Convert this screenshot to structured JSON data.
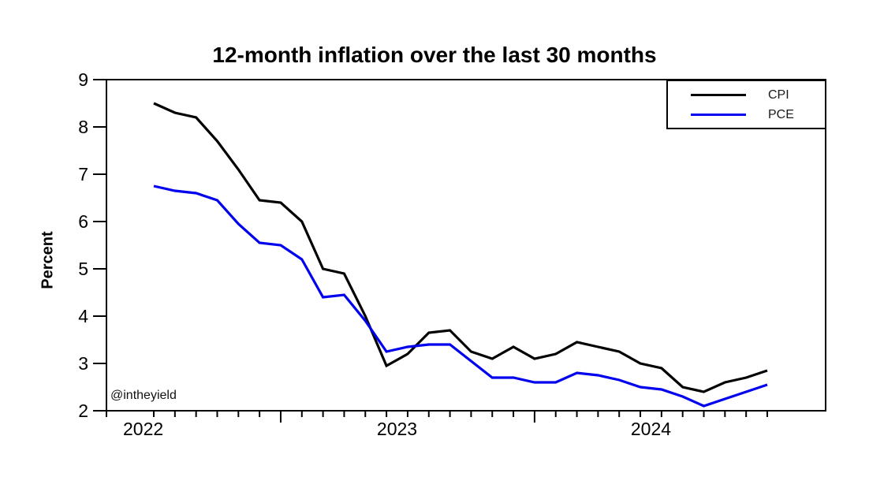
{
  "title": "12-month inflation over the last 30 months",
  "y_axis": {
    "label": "Percent"
  },
  "watermark": "@intheyield",
  "legend": {
    "items": [
      {
        "label": "CPI",
        "color": "#000000"
      },
      {
        "label": "PCE",
        "color": "#0000ee"
      }
    ]
  },
  "chart_data": {
    "type": "line",
    "title": "12-month inflation over the last 30 months",
    "xlabel": "",
    "ylabel": "Percent",
    "ylim": [
      2,
      9
    ],
    "yticks": [
      2,
      3,
      4,
      5,
      6,
      7,
      8,
      9
    ],
    "grid": false,
    "legend_position": "top-right",
    "x": [
      "2022-07",
      "2022-08",
      "2022-09",
      "2022-10",
      "2022-11",
      "2022-12",
      "2023-01",
      "2023-02",
      "2023-03",
      "2023-04",
      "2023-05",
      "2023-06",
      "2023-07",
      "2023-08",
      "2023-09",
      "2023-10",
      "2023-11",
      "2023-12",
      "2024-01",
      "2024-02",
      "2024-03",
      "2024-04",
      "2024-05",
      "2024-06",
      "2024-07",
      "2024-08",
      "2024-09",
      "2024-10",
      "2024-11",
      "2024-12"
    ],
    "x_year_labels": [
      "2022",
      "2023",
      "2024"
    ],
    "major_ticks_at": [
      "2023-01",
      "2024-01"
    ],
    "series": [
      {
        "name": "CPI",
        "color": "#000000",
        "values": [
          8.5,
          8.3,
          8.2,
          7.7,
          7.1,
          6.45,
          6.4,
          6.0,
          5.0,
          4.9,
          4.0,
          2.95,
          3.2,
          3.65,
          3.7,
          3.25,
          3.1,
          3.35,
          3.1,
          3.2,
          3.45,
          3.35,
          3.25,
          3.0,
          2.9,
          2.5,
          2.4,
          2.6,
          2.7,
          2.85
        ]
      },
      {
        "name": "PCE",
        "color": "#0000ee",
        "values": [
          6.75,
          6.65,
          6.6,
          6.45,
          5.95,
          5.55,
          5.5,
          5.2,
          4.4,
          4.45,
          3.9,
          3.25,
          3.35,
          3.4,
          3.4,
          3.05,
          2.7,
          2.7,
          2.6,
          2.6,
          2.8,
          2.75,
          2.65,
          2.5,
          2.45,
          2.3,
          2.1,
          2.25,
          2.4,
          2.55
        ]
      }
    ]
  }
}
